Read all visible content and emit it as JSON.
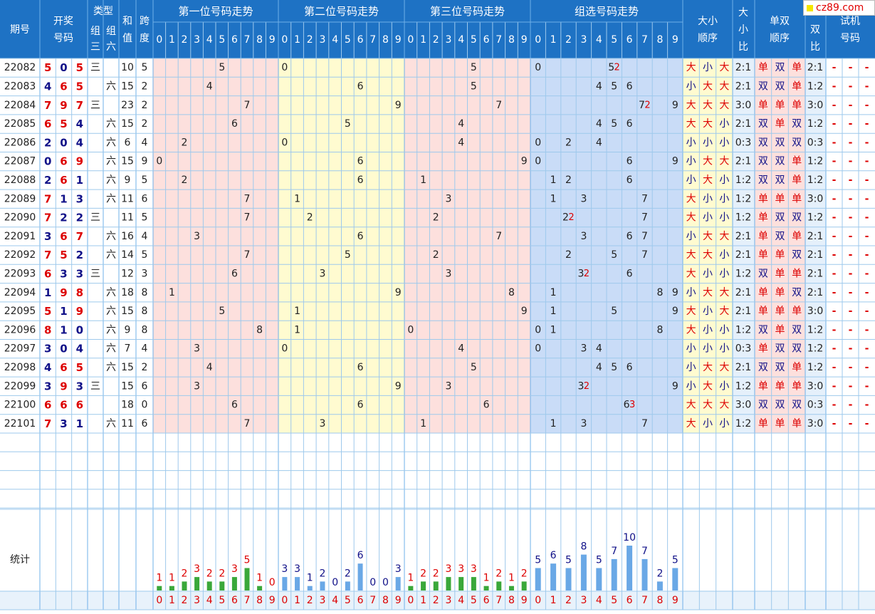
{
  "header": {
    "issue": "期号",
    "draw": [
      "开奖",
      "号码"
    ],
    "type": "类型",
    "type_z3": [
      "组",
      "三"
    ],
    "type_z6": [
      "组",
      "六"
    ],
    "sum": [
      "和",
      "值"
    ],
    "span": [
      "跨",
      "度"
    ],
    "pos1": "第一位号码走势",
    "pos2": "第二位号码走势",
    "pos3": "第三位号码走势",
    "group": "组选号码走势",
    "bs_order": [
      "大小",
      "顺序"
    ],
    "bs_ratio": [
      "大",
      "小",
      "比"
    ],
    "oe_order": [
      "单双",
      "顺序"
    ],
    "oe_ratio": [
      "双",
      "比"
    ],
    "trial": [
      "试机",
      "号码"
    ],
    "digits": [
      "0",
      "1",
      "2",
      "3",
      "4",
      "5",
      "6",
      "7",
      "8",
      "9"
    ]
  },
  "logo_text": "cz89.com",
  "stats_label": "统计",
  "chart_data": {
    "type": "table",
    "columns": [
      "期号",
      "开奖号码",
      "组三",
      "组六",
      "和值",
      "跨度",
      "大小顺序",
      "大小比",
      "单双顺序",
      "单双比",
      "试机号码"
    ],
    "rows": [
      {
        "issue": "22082",
        "nums": [
          5,
          0,
          5
        ],
        "z3": "三",
        "z6": "",
        "sum": "10",
        "span": "5",
        "bs": [
          "大",
          "小",
          "大"
        ],
        "bsr": "2:1",
        "oe": [
          "单",
          "双",
          "单"
        ],
        "oer": "2:1",
        "trial": [
          "-",
          "-",
          "-"
        ]
      },
      {
        "issue": "22083",
        "nums": [
          4,
          6,
          5
        ],
        "z3": "",
        "z6": "六",
        "sum": "15",
        "span": "2",
        "bs": [
          "小",
          "大",
          "大"
        ],
        "bsr": "2:1",
        "oe": [
          "双",
          "双",
          "单"
        ],
        "oer": "1:2",
        "trial": [
          "-",
          "-",
          "-"
        ]
      },
      {
        "issue": "22084",
        "nums": [
          7,
          9,
          7
        ],
        "z3": "三",
        "z6": "",
        "sum": "23",
        "span": "2",
        "bs": [
          "大",
          "大",
          "大"
        ],
        "bsr": "3:0",
        "oe": [
          "单",
          "单",
          "单"
        ],
        "oer": "3:0",
        "trial": [
          "-",
          "-",
          "-"
        ]
      },
      {
        "issue": "22085",
        "nums": [
          6,
          5,
          4
        ],
        "z3": "",
        "z6": "六",
        "sum": "15",
        "span": "2",
        "bs": [
          "大",
          "大",
          "小"
        ],
        "bsr": "2:1",
        "oe": [
          "双",
          "单",
          "双"
        ],
        "oer": "1:2",
        "trial": [
          "-",
          "-",
          "-"
        ]
      },
      {
        "issue": "22086",
        "nums": [
          2,
          0,
          4
        ],
        "z3": "",
        "z6": "六",
        "sum": "6",
        "span": "4",
        "bs": [
          "小",
          "小",
          "小"
        ],
        "bsr": "0:3",
        "oe": [
          "双",
          "双",
          "双"
        ],
        "oer": "0:3",
        "trial": [
          "-",
          "-",
          "-"
        ]
      },
      {
        "issue": "22087",
        "nums": [
          0,
          6,
          9
        ],
        "z3": "",
        "z6": "六",
        "sum": "15",
        "span": "9",
        "bs": [
          "小",
          "大",
          "大"
        ],
        "bsr": "2:1",
        "oe": [
          "双",
          "双",
          "单"
        ],
        "oer": "1:2",
        "trial": [
          "-",
          "-",
          "-"
        ]
      },
      {
        "issue": "22088",
        "nums": [
          2,
          6,
          1
        ],
        "z3": "",
        "z6": "六",
        "sum": "9",
        "span": "5",
        "bs": [
          "小",
          "大",
          "小"
        ],
        "bsr": "1:2",
        "oe": [
          "双",
          "双",
          "单"
        ],
        "oer": "1:2",
        "trial": [
          "-",
          "-",
          "-"
        ]
      },
      {
        "issue": "22089",
        "nums": [
          7,
          1,
          3
        ],
        "z3": "",
        "z6": "六",
        "sum": "11",
        "span": "6",
        "bs": [
          "大",
          "小",
          "小"
        ],
        "bsr": "1:2",
        "oe": [
          "单",
          "单",
          "单"
        ],
        "oer": "3:0",
        "trial": [
          "-",
          "-",
          "-"
        ]
      },
      {
        "issue": "22090",
        "nums": [
          7,
          2,
          2
        ],
        "z3": "三",
        "z6": "",
        "sum": "11",
        "span": "5",
        "bs": [
          "大",
          "小",
          "小"
        ],
        "bsr": "1:2",
        "oe": [
          "单",
          "双",
          "双"
        ],
        "oer": "1:2",
        "trial": [
          "-",
          "-",
          "-"
        ]
      },
      {
        "issue": "22091",
        "nums": [
          3,
          6,
          7
        ],
        "z3": "",
        "z6": "六",
        "sum": "16",
        "span": "4",
        "bs": [
          "小",
          "大",
          "大"
        ],
        "bsr": "2:1",
        "oe": [
          "单",
          "双",
          "单"
        ],
        "oer": "2:1",
        "trial": [
          "-",
          "-",
          "-"
        ]
      },
      {
        "issue": "22092",
        "nums": [
          7,
          5,
          2
        ],
        "z3": "",
        "z6": "六",
        "sum": "14",
        "span": "5",
        "bs": [
          "大",
          "大",
          "小"
        ],
        "bsr": "2:1",
        "oe": [
          "单",
          "单",
          "双"
        ],
        "oer": "2:1",
        "trial": [
          "-",
          "-",
          "-"
        ]
      },
      {
        "issue": "22093",
        "nums": [
          6,
          3,
          3
        ],
        "z3": "三",
        "z6": "",
        "sum": "12",
        "span": "3",
        "bs": [
          "大",
          "小",
          "小"
        ],
        "bsr": "1:2",
        "oe": [
          "双",
          "单",
          "单"
        ],
        "oer": "2:1",
        "trial": [
          "-",
          "-",
          "-"
        ]
      },
      {
        "issue": "22094",
        "nums": [
          1,
          9,
          8
        ],
        "z3": "",
        "z6": "六",
        "sum": "18",
        "span": "8",
        "bs": [
          "小",
          "大",
          "大"
        ],
        "bsr": "2:1",
        "oe": [
          "单",
          "单",
          "双"
        ],
        "oer": "2:1",
        "trial": [
          "-",
          "-",
          "-"
        ]
      },
      {
        "issue": "22095",
        "nums": [
          5,
          1,
          9
        ],
        "z3": "",
        "z6": "六",
        "sum": "15",
        "span": "8",
        "bs": [
          "大",
          "小",
          "大"
        ],
        "bsr": "2:1",
        "oe": [
          "单",
          "单",
          "单"
        ],
        "oer": "3:0",
        "trial": [
          "-",
          "-",
          "-"
        ]
      },
      {
        "issue": "22096",
        "nums": [
          8,
          1,
          0
        ],
        "z3": "",
        "z6": "六",
        "sum": "9",
        "span": "8",
        "bs": [
          "大",
          "小",
          "小"
        ],
        "bsr": "1:2",
        "oe": [
          "双",
          "单",
          "双"
        ],
        "oer": "1:2",
        "trial": [
          "-",
          "-",
          "-"
        ]
      },
      {
        "issue": "22097",
        "nums": [
          3,
          0,
          4
        ],
        "z3": "",
        "z6": "六",
        "sum": "7",
        "span": "4",
        "bs": [
          "小",
          "小",
          "小"
        ],
        "bsr": "0:3",
        "oe": [
          "单",
          "双",
          "双"
        ],
        "oer": "1:2",
        "trial": [
          "-",
          "-",
          "-"
        ]
      },
      {
        "issue": "22098",
        "nums": [
          4,
          6,
          5
        ],
        "z3": "",
        "z6": "六",
        "sum": "15",
        "span": "2",
        "bs": [
          "小",
          "大",
          "大"
        ],
        "bsr": "2:1",
        "oe": [
          "双",
          "双",
          "单"
        ],
        "oer": "1:2",
        "trial": [
          "-",
          "-",
          "-"
        ]
      },
      {
        "issue": "22099",
        "nums": [
          3,
          9,
          3
        ],
        "z3": "三",
        "z6": "",
        "sum": "15",
        "span": "6",
        "bs": [
          "小",
          "大",
          "小"
        ],
        "bsr": "1:2",
        "oe": [
          "单",
          "单",
          "单"
        ],
        "oer": "3:0",
        "trial": [
          "-",
          "-",
          "-"
        ]
      },
      {
        "issue": "22100",
        "nums": [
          6,
          6,
          6
        ],
        "z3": "",
        "z6": "",
        "sum": "18",
        "span": "0",
        "bs": [
          "大",
          "大",
          "大"
        ],
        "bsr": "3:0",
        "oe": [
          "双",
          "双",
          "双"
        ],
        "oer": "0:3",
        "trial": [
          "-",
          "-",
          "-"
        ]
      },
      {
        "issue": "22101",
        "nums": [
          7,
          3,
          1
        ],
        "z3": "",
        "z6": "六",
        "sum": "11",
        "span": "6",
        "bs": [
          "大",
          "小",
          "小"
        ],
        "bsr": "1:2",
        "oe": [
          "单",
          "单",
          "单"
        ],
        "oer": "3:0",
        "trial": [
          "-",
          "-",
          "-"
        ]
      }
    ],
    "stats": {
      "pos1": [
        1,
        1,
        2,
        3,
        2,
        2,
        3,
        5,
        1,
        0
      ],
      "pos2": [
        3,
        3,
        1,
        2,
        0,
        2,
        6,
        0,
        0,
        3
      ],
      "pos3": [
        1,
        2,
        2,
        3,
        3,
        3,
        1,
        2,
        1,
        2
      ],
      "group": [
        5,
        6,
        5,
        8,
        5,
        7,
        10,
        7,
        2,
        5
      ]
    }
  },
  "colors": {
    "header_bg": "#1e72c4",
    "line": "#9ec9ec",
    "pos1_bg": "#fde0dd",
    "pos2_bg": "#fffbd0",
    "pos3_bg": "#fde0dd",
    "group_bg": "#c9dcf7",
    "order_bg": "#fffbd0",
    "ratio_bg": "#e5f0fb",
    "oe_bg": "#fde0dd",
    "red": "#dd0000",
    "navy": "#101088",
    "bar_green": "#3aa83a",
    "bar_blue": "#6aa8e6"
  }
}
